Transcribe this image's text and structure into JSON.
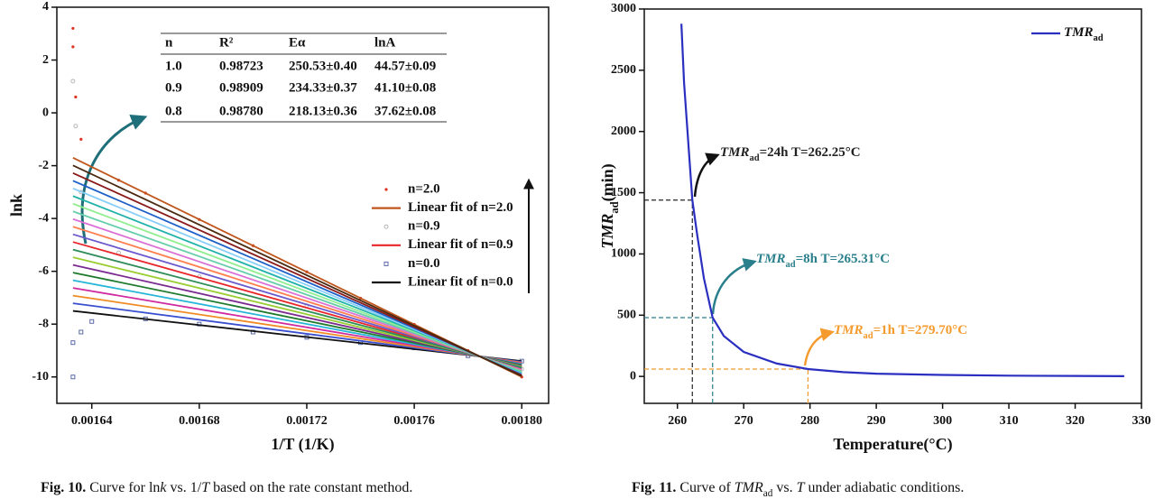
{
  "chart_data": [
    {
      "type": "line",
      "x_title": "1/T (1/K)",
      "y_title": "lnk",
      "xlim": [
        0.001627,
        0.00181
      ],
      "ylim": [
        -11,
        4
      ],
      "xticks": [
        0.00164,
        0.00168,
        0.00172,
        0.00176,
        {
          "value": 0.0018,
          "label": "0.00180"
        }
      ],
      "yticks": [
        -10,
        -8,
        -6,
        -4,
        -2,
        0,
        2,
        4
      ],
      "legend": "right",
      "table": {
        "header": [
          "n",
          "R²",
          "Eα",
          "lnA"
        ],
        "rows": [
          [
            "1.0",
            "0.98723",
            "250.53±0.40",
            "44.57±0.09"
          ],
          [
            "0.9",
            "0.98909",
            "234.33±0.37",
            "41.10±0.08"
          ],
          [
            "0.8",
            "0.98780",
            "218.13±0.36",
            "37.62±0.08"
          ]
        ]
      },
      "series": [
        {
          "name": "n=2.0",
          "mode": "markers",
          "marker": "dot",
          "color": "#e03020",
          "x": [
            0.001633,
            0.001633,
            0.001634,
            0.001636,
            0.00165,
            0.00166,
            0.00168,
            0.0017,
            0.00172,
            0.00174,
            0.00176,
            0.00178,
            0.0018
          ],
          "values": [
            3.2,
            2.5,
            0.6,
            -1.0,
            -2.55,
            -3.04,
            -4.04,
            -5.03,
            -6.02,
            -7.02,
            -8.01,
            -9.0,
            -10.0
          ]
        },
        {
          "name": "Linear fit of n=2.0",
          "color": "#c0561c",
          "x": [
            0.001633,
            0.0018
          ],
          "values": [
            -1.7,
            -10.0
          ]
        },
        {
          "name": "n=0.9",
          "mode": "markers",
          "marker": "circle",
          "color": "#b8b8b8",
          "x": [
            0.001633,
            0.001634,
            0.001636,
            0.00165,
            0.00168,
            0.00172,
            0.00176,
            0.0018
          ],
          "values": [
            1.2,
            -0.5,
            -3.0,
            -5.3,
            -6.2,
            -7.3,
            -8.5,
            -9.7
          ]
        },
        {
          "name": "Linear fit of n=0.9",
          "color": "#e8262a",
          "x": [
            0.001633,
            0.0018
          ],
          "values": [
            -4.89,
            -9.67
          ]
        },
        {
          "name": "n=0.0",
          "mode": "markers",
          "marker": "square",
          "color": "#5a6aa8",
          "x": [
            0.001633,
            0.001633,
            0.001636,
            0.00164,
            0.00166,
            0.00168,
            0.0017,
            0.00172,
            0.00174,
            0.00176,
            0.00178,
            0.0018
          ],
          "values": [
            -10.0,
            -8.7,
            -8.3,
            -7.9,
            -7.8,
            -8.0,
            -8.3,
            -8.5,
            -8.7,
            -8.9,
            -9.2,
            -9.4
          ]
        },
        {
          "name": "Linear fit of n=0.0",
          "color": "#111111",
          "x": [
            0.001633,
            0.0018
          ],
          "values": [
            -7.5,
            -9.4
          ]
        },
        {
          "color": "#3a4fcf",
          "x": [
            0.001633,
            0.0018
          ],
          "values": [
            -7.21,
            -9.43
          ]
        },
        {
          "color": "#f08a24",
          "x": [
            0.001633,
            0.0018
          ],
          "values": [
            -6.92,
            -9.46
          ]
        },
        {
          "color": "#d02aa0",
          "x": [
            0.001633,
            0.0018
          ],
          "values": [
            -6.63,
            -9.49
          ]
        },
        {
          "color": "#28b6d8",
          "x": [
            0.001633,
            0.0018
          ],
          "values": [
            -6.34,
            -9.52
          ]
        },
        {
          "color": "#1f7a2e",
          "x": [
            0.001633,
            0.0018
          ],
          "values": [
            -6.05,
            -9.55
          ]
        },
        {
          "color": "#7a2a90",
          "x": [
            0.001633,
            0.0018
          ],
          "values": [
            -5.76,
            -9.58
          ]
        },
        {
          "color": "#9acd32",
          "x": [
            0.001633,
            0.0018
          ],
          "values": [
            -5.47,
            -9.61
          ]
        },
        {
          "color": "#2e8b57",
          "x": [
            0.001633,
            0.0018
          ],
          "values": [
            -5.18,
            -9.64
          ]
        },
        {
          "color": "#6a5acd",
          "x": [
            0.001633,
            0.0018
          ],
          "values": [
            -4.6,
            -9.7
          ]
        },
        {
          "color": "#ff7f50",
          "x": [
            0.001633,
            0.0018
          ],
          "values": [
            -4.31,
            -9.73
          ]
        },
        {
          "color": "#da70d6",
          "x": [
            0.001633,
            0.0018
          ],
          "values": [
            -4.02,
            -9.76
          ]
        },
        {
          "color": "#66cdaa",
          "x": [
            0.001633,
            0.0018
          ],
          "values": [
            -3.73,
            -9.79
          ]
        },
        {
          "color": "#90ee90",
          "x": [
            0.001633,
            0.0018
          ],
          "values": [
            -3.44,
            -9.82
          ]
        },
        {
          "color": "#20b2aa",
          "x": [
            0.001633,
            0.0018
          ],
          "values": [
            -3.15,
            -9.85
          ]
        },
        {
          "color": "#87cefa",
          "x": [
            0.001633,
            0.0018
          ],
          "values": [
            -2.86,
            -9.88
          ]
        },
        {
          "color": "#1e60c8",
          "x": [
            0.001633,
            0.0018
          ],
          "values": [
            -2.57,
            -9.91
          ]
        },
        {
          "color": "#8b1a1a",
          "x": [
            0.001633,
            0.0018
          ],
          "values": [
            -2.28,
            -9.94
          ]
        },
        {
          "color": "#4a2a10",
          "x": [
            0.001633,
            0.0018
          ],
          "values": [
            -1.99,
            -9.97
          ]
        }
      ],
      "caption": [
        "Fig. 10.",
        " Curve for ln",
        "k",
        " vs. 1/",
        "T",
        " based on the rate constant method."
      ]
    },
    {
      "type": "line",
      "x_title": "Temperature(°C)",
      "y_title": [
        "TMR",
        "ad",
        "(min)"
      ],
      "xlim": [
        255,
        330
      ],
      "ylim": [
        -220,
        3000
      ],
      "xticks": [
        260,
        270,
        280,
        290,
        300,
        310,
        320,
        330
      ],
      "yticks": [
        0,
        500,
        1000,
        1500,
        2000,
        2500,
        3000
      ],
      "legend": "upper right",
      "series": [
        {
          "name": [
            "TMR",
            "ad"
          ],
          "color": "#2a2fc0",
          "x": [
            260.6,
            261,
            262.25,
            263,
            264,
            265.31,
            267,
            270,
            275,
            279.7,
            285,
            290,
            300,
            310,
            320,
            327.4
          ],
          "values": [
            2880,
            2400,
            1440,
            1150,
            800,
            480,
            330,
            200,
            105,
            60,
            35,
            22,
            12,
            6,
            4,
            2
          ]
        }
      ],
      "annotations": [
        {
          "x": 262.25,
          "y": 1440,
          "text": [
            "TMR",
            "ad",
            "=24h T=262.25°C"
          ],
          "color": "#222222"
        },
        {
          "x": 265.31,
          "y": 480,
          "text": [
            "TMR",
            "ad",
            "=8h T=265.31°C"
          ],
          "color": "#2a7f8c"
        },
        {
          "x": 279.7,
          "y": 60,
          "text": [
            "TMR",
            "ad",
            "=1h T=279.70°C"
          ],
          "color": "#f59a2c"
        }
      ],
      "caption": [
        "Fig. 11.",
        " Curve of ",
        "TMR",
        "ad",
        " vs. ",
        "T",
        " under adiabatic conditions."
      ]
    }
  ]
}
